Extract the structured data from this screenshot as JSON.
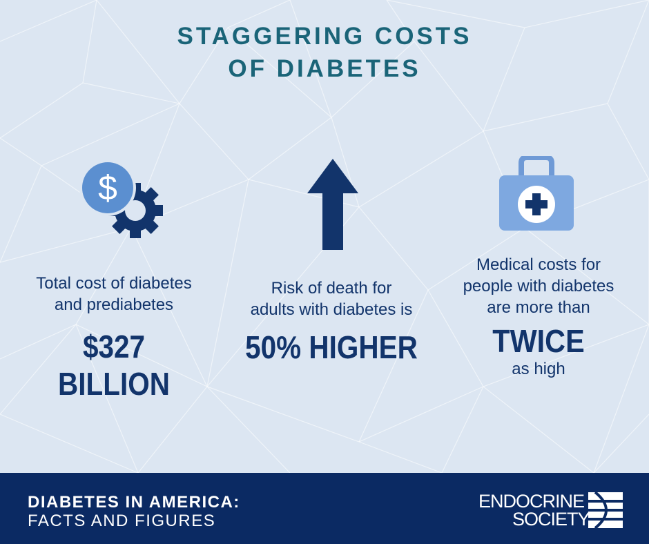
{
  "title": {
    "line1": "STAGGERING COSTS",
    "line2": "OF DIABETES"
  },
  "stats": [
    {
      "icon": "dollar-gear-icon",
      "text_line1": "Total cost of diabetes",
      "text_line2": "and prediabetes",
      "highlight": "$327 BILLION"
    },
    {
      "icon": "up-arrow-icon",
      "text_line1": "Risk of death for",
      "text_line2": "adults with diabetes is",
      "highlight": "50% HIGHER"
    },
    {
      "icon": "medical-kit-icon",
      "text_line1": "Medical costs for",
      "text_line2": "people with diabetes",
      "text_line3": "are more than",
      "highlight": "TWICE",
      "text_after": "as high"
    }
  ],
  "footer": {
    "line1": "DIABETES IN AMERICA:",
    "line2": "FACTS AND FIGURES",
    "logo_line1": "ENDOCRINE",
    "logo_line2": "SOCIETY",
    "logo_icon": "endocrine-society-logo-icon"
  },
  "colors": {
    "background": "#dce6f2",
    "title": "#1a6478",
    "text": "#12346b",
    "icon_light": "#5b8fd0",
    "footer_bg": "#0b2a63"
  }
}
